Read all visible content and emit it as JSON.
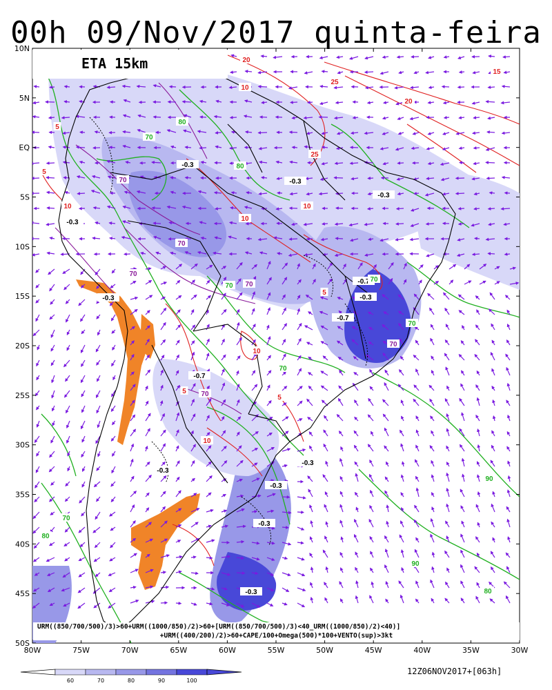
{
  "title": "00h 09/Nov/2017 quinta-feira",
  "model_label": "ETA 15km",
  "formula": {
    "line1": "URM((850/700/500)/3)>60+URM((1000/850)/2)>60+[URM((850/700/500)/3)<40_URM((1000/850)/2)<40)]",
    "line2": "+URM((400/200)/2)>60+CAPE/100+Omega(500)*100+VENTO(sup)>3kt"
  },
  "timestamp": "12Z06NOV2017+[063h]",
  "lat_labels": [
    "10N",
    "5N",
    "EQ",
    "5S",
    "10S",
    "15S",
    "20S",
    "25S",
    "30S",
    "35S",
    "40S",
    "45S",
    "50S"
  ],
  "lon_labels": [
    "80W",
    "75W",
    "70W",
    "65W",
    "60W",
    "55W",
    "50W",
    "45W",
    "40W",
    "35W",
    "30W"
  ],
  "colorbar": {
    "ticks": [
      "60",
      "70",
      "80",
      "90",
      "100"
    ],
    "colors": [
      "#d8d8f8",
      "#b8b8f0",
      "#9898e8",
      "#7474e0",
      "#4848d8"
    ]
  },
  "contour_labels": [
    {
      "text": "-0.3",
      "color": "#000000"
    },
    {
      "text": "-0.3",
      "color": "#000000"
    },
    {
      "text": "-0.3",
      "color": "#000000"
    },
    {
      "text": "-0.3",
      "color": "#000000"
    },
    {
      "text": "-0.3",
      "color": "#000000"
    },
    {
      "text": "-0.3",
      "color": "#000000"
    },
    {
      "text": "-0.3",
      "color": "#000000"
    },
    {
      "text": "-0.3",
      "color": "#000000"
    },
    {
      "text": "-0.3",
      "color": "#000000"
    },
    {
      "text": "-0.3",
      "color": "#000000"
    },
    {
      "text": "-0.3",
      "color": "#000000"
    },
    {
      "text": "-0.7",
      "color": "#000000"
    },
    {
      "text": "-0.7",
      "color": "#000000"
    },
    {
      "text": "-0.7",
      "color": "#000000"
    },
    {
      "text": "20",
      "color": "#e02020"
    },
    {
      "text": "10",
      "color": "#e02020"
    },
    {
      "text": "25",
      "color": "#e02020"
    },
    {
      "text": "20",
      "color": "#e02020"
    },
    {
      "text": "15",
      "color": "#e02020"
    },
    {
      "text": "25",
      "color": "#e02020"
    },
    {
      "text": "10",
      "color": "#e02020"
    },
    {
      "text": "10",
      "color": "#e02020"
    },
    {
      "text": "10",
      "color": "#e02020"
    },
    {
      "text": "10",
      "color": "#e02020"
    },
    {
      "text": "10",
      "color": "#e02020"
    },
    {
      "text": "5",
      "color": "#e02020"
    },
    {
      "text": "5",
      "color": "#e02020"
    },
    {
      "text": "5",
      "color": "#e02020"
    },
    {
      "text": "5",
      "color": "#e02020"
    },
    {
      "text": "5",
      "color": "#e02020"
    },
    {
      "text": "80",
      "color": "#20b020"
    },
    {
      "text": "80",
      "color": "#20b020"
    },
    {
      "text": "70",
      "color": "#20b020"
    },
    {
      "text": "70",
      "color": "#20b020"
    },
    {
      "text": "70",
      "color": "#20b020"
    },
    {
      "text": "70",
      "color": "#20b020"
    },
    {
      "text": "70",
      "color": "#20b020"
    },
    {
      "text": "80",
      "color": "#20b020"
    },
    {
      "text": "90",
      "color": "#20b020"
    },
    {
      "text": "90",
      "color": "#20b020"
    },
    {
      "text": "80",
      "color": "#20b020"
    },
    {
      "text": "70",
      "color": "#20b020"
    },
    {
      "text": "70",
      "color": "#8a1a9a"
    },
    {
      "text": "70",
      "color": "#8a1a9a"
    },
    {
      "text": "70",
      "color": "#8a1a9a"
    },
    {
      "text": "70",
      "color": "#8a1a9a"
    },
    {
      "text": "70",
      "color": "#8a1a9a"
    },
    {
      "text": "70",
      "color": "#8a1a9a"
    }
  ],
  "colors": {
    "red_contour": "#e02020",
    "green_contour": "#20b020",
    "purple_contour": "#8a1a9a",
    "vector": "#7a1ae0",
    "orange_field": "#f08428",
    "coast": "#000000"
  }
}
